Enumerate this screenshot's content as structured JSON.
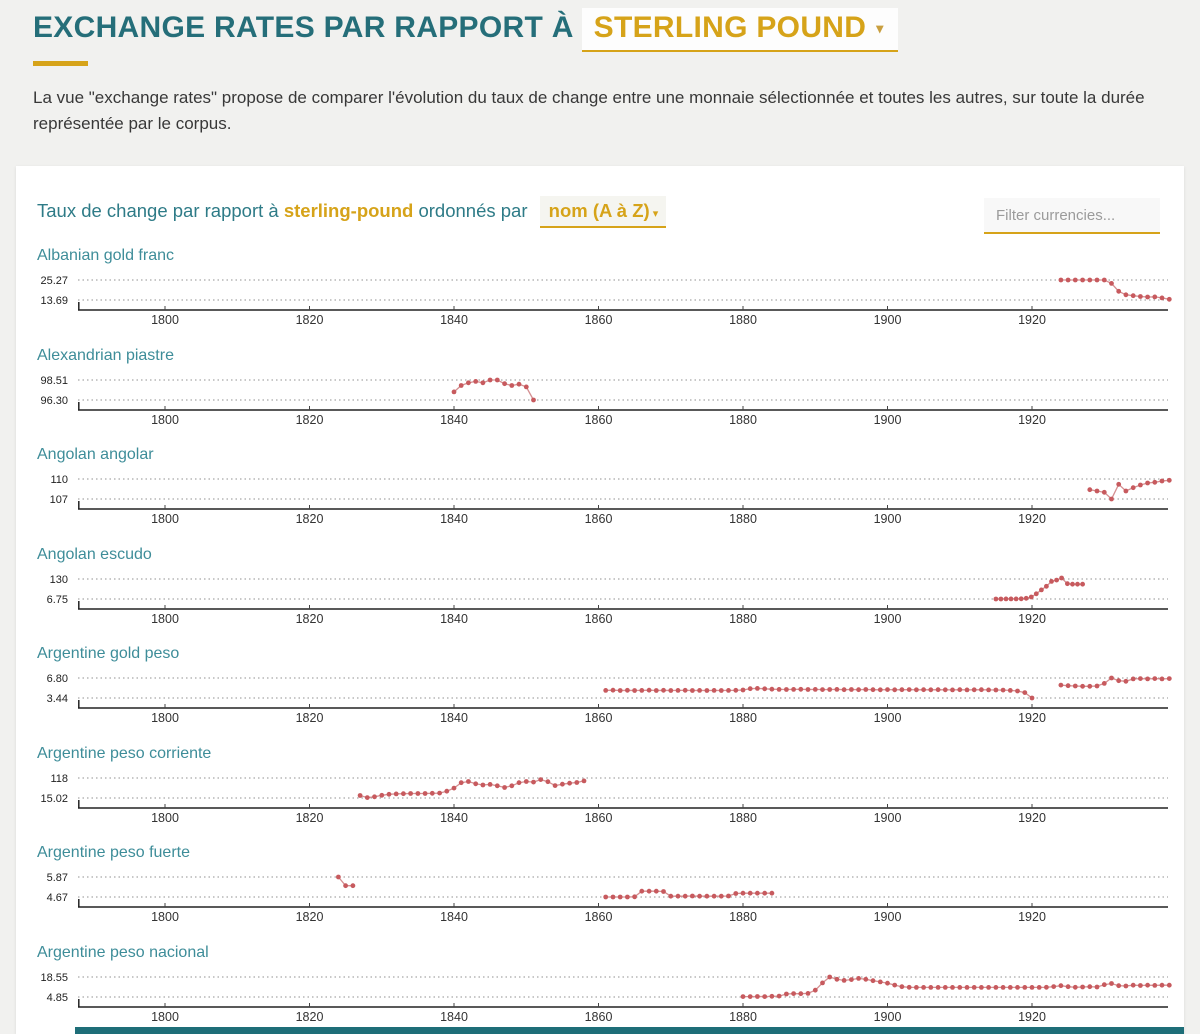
{
  "header": {
    "title": "EXCHANGE RATES PAR RAPPORT À",
    "currency_selector": {
      "value": "STERLING POUND"
    },
    "description": "La vue \"exchange rates\" propose de comparer l'évolution du taux de change entre une monnaie sélectionnée et toutes les autres, sur toute la durée représentée par le corpus."
  },
  "panel": {
    "subtitle_prefix": "Taux de change par rapport à",
    "subtitle_currency": "sterling-pound",
    "subtitle_suffix": "ordonnés par",
    "sort_selector": {
      "value": "nom (A à Z)"
    },
    "filter_input": {
      "placeholder": "Filter currencies...",
      "value": ""
    }
  },
  "colors": {
    "accent_teal": "#256e79",
    "accent_gold": "#d6a319",
    "currency_title_teal": "#3e8d99",
    "series_point": "#c75a5e",
    "series_line": "#d48f91",
    "gridline": "#909090",
    "axis": "#222222",
    "panel_bg": "#ffffff",
    "page_bg": "#f1f1ef",
    "bottom_bar_teal": "#1e6e78"
  },
  "chart_config": {
    "x_ticks": [
      1800,
      1820,
      1840,
      1860,
      1880,
      1900,
      1920
    ],
    "x_domain": [
      1788,
      1939
    ],
    "grid": "dotted-horizontal",
    "legend": "none"
  },
  "chart_data": [
    {
      "type": "line",
      "name": "Albanian gold franc",
      "y_ticks": [
        "25.27",
        "13.69"
      ],
      "segments": [
        [
          [
            1924,
            25.27
          ],
          [
            1925,
            25.27
          ],
          [
            1926,
            25.27
          ],
          [
            1927,
            25.27
          ],
          [
            1928,
            25.27
          ],
          [
            1929,
            25.27
          ],
          [
            1930,
            25.27
          ],
          [
            1931,
            23.3
          ],
          [
            1932,
            18.7
          ],
          [
            1933,
            16.7
          ],
          [
            1934,
            16.2
          ],
          [
            1935,
            15.7
          ],
          [
            1936,
            15.4
          ],
          [
            1937,
            15.5
          ],
          [
            1938,
            14.9
          ],
          [
            1939,
            14.1
          ]
        ]
      ]
    },
    {
      "type": "line",
      "name": "Alexandrian piastre",
      "y_ticks": [
        "98.51",
        "96.30"
      ],
      "segments": [
        [
          [
            1840,
            97.2
          ],
          [
            1841,
            97.9
          ],
          [
            1842,
            98.2
          ],
          [
            1843,
            98.35
          ],
          [
            1844,
            98.2
          ],
          [
            1845,
            98.51
          ],
          [
            1846,
            98.51
          ],
          [
            1847,
            98.1
          ],
          [
            1848,
            97.9
          ],
          [
            1849,
            98.05
          ],
          [
            1850,
            97.75
          ],
          [
            1851,
            96.3
          ]
        ]
      ]
    },
    {
      "type": "line",
      "name": "Angolan angolar",
      "y_ticks": [
        "110",
        "107"
      ],
      "segments": [
        [
          [
            1928,
            108.4
          ],
          [
            1929,
            108.2
          ],
          [
            1930,
            108.0
          ],
          [
            1931,
            107.0
          ],
          [
            1932,
            109.2
          ],
          [
            1933,
            108.2
          ],
          [
            1934,
            108.7
          ],
          [
            1935,
            109.1
          ],
          [
            1936,
            109.4
          ],
          [
            1937,
            109.5
          ],
          [
            1938,
            109.7
          ],
          [
            1939,
            109.8
          ]
        ]
      ]
    },
    {
      "type": "line",
      "name": "Angolan escudo",
      "y_ticks": [
        "130",
        "6.75"
      ],
      "segments": [
        [
          [
            1915,
            7
          ],
          [
            1915.7,
            7
          ],
          [
            1916.4,
            7.1
          ],
          [
            1917.1,
            7.2
          ],
          [
            1917.8,
            7.4
          ],
          [
            1918.5,
            7.8
          ],
          [
            1919.2,
            11
          ],
          [
            1919.9,
            19
          ],
          [
            1920.6,
            39
          ],
          [
            1921.3,
            63
          ],
          [
            1922,
            85
          ],
          [
            1922.7,
            115
          ],
          [
            1923.4,
            123
          ],
          [
            1924.1,
            136
          ],
          [
            1924.9,
            101
          ],
          [
            1925.6,
            98
          ],
          [
            1926.3,
            98
          ],
          [
            1927,
            98
          ]
        ]
      ]
    },
    {
      "type": "line",
      "name": "Argentine gold peso",
      "y_ticks": [
        "6.80",
        "3.44"
      ],
      "segments": [
        [
          [
            1861,
            4.72
          ],
          [
            1862,
            4.75
          ],
          [
            1863,
            4.7
          ],
          [
            1864,
            4.74
          ],
          [
            1865,
            4.7
          ],
          [
            1866,
            4.72
          ],
          [
            1867,
            4.75
          ],
          [
            1868,
            4.7
          ],
          [
            1869,
            4.73
          ],
          [
            1870,
            4.7
          ],
          [
            1871,
            4.72
          ],
          [
            1872,
            4.74
          ],
          [
            1873,
            4.7
          ],
          [
            1874,
            4.72
          ],
          [
            1875,
            4.7
          ],
          [
            1876,
            4.72
          ],
          [
            1877,
            4.7
          ],
          [
            1878,
            4.72
          ],
          [
            1879,
            4.74
          ],
          [
            1880,
            4.78
          ],
          [
            1881,
            5.0
          ],
          [
            1882,
            5.05
          ],
          [
            1883,
            4.98
          ],
          [
            1884,
            4.92
          ],
          [
            1885,
            4.88
          ],
          [
            1886,
            4.86
          ],
          [
            1887,
            4.88
          ],
          [
            1888,
            4.9
          ],
          [
            1889,
            4.86
          ],
          [
            1890,
            4.88
          ],
          [
            1891,
            4.85
          ],
          [
            1892,
            4.86
          ],
          [
            1893,
            4.88
          ],
          [
            1894,
            4.84
          ],
          [
            1895,
            4.86
          ],
          [
            1896,
            4.83
          ],
          [
            1897,
            4.86
          ],
          [
            1898,
            4.84
          ],
          [
            1899,
            4.82
          ],
          [
            1900,
            4.85
          ],
          [
            1901,
            4.82
          ],
          [
            1902,
            4.83
          ],
          [
            1903,
            4.85
          ],
          [
            1904,
            4.82
          ],
          [
            1905,
            4.84
          ],
          [
            1906,
            4.81
          ],
          [
            1907,
            4.84
          ],
          [
            1908,
            4.82
          ],
          [
            1909,
            4.8
          ],
          [
            1910,
            4.83
          ],
          [
            1911,
            4.8
          ],
          [
            1912,
            4.81
          ],
          [
            1913,
            4.83
          ],
          [
            1914,
            4.8
          ],
          [
            1915,
            4.79
          ],
          [
            1916,
            4.76
          ],
          [
            1917,
            4.72
          ],
          [
            1918,
            4.62
          ],
          [
            1919,
            4.35
          ],
          [
            1920,
            3.44
          ]
        ],
        [
          [
            1924,
            5.6
          ],
          [
            1925,
            5.5
          ],
          [
            1926,
            5.45
          ],
          [
            1927,
            5.4
          ],
          [
            1928,
            5.4
          ],
          [
            1929,
            5.45
          ],
          [
            1930,
            5.9
          ],
          [
            1931,
            6.8
          ],
          [
            1932,
            6.35
          ],
          [
            1933,
            6.25
          ],
          [
            1934,
            6.65
          ],
          [
            1935,
            6.7
          ],
          [
            1936,
            6.65
          ],
          [
            1937,
            6.7
          ],
          [
            1938,
            6.65
          ],
          [
            1939,
            6.7
          ]
        ]
      ]
    },
    {
      "type": "line",
      "name": "Argentine peso corriente",
      "y_ticks": [
        "118",
        "15.02"
      ],
      "segments": [
        [
          [
            1827,
            28
          ],
          [
            1828,
            17
          ],
          [
            1829,
            21
          ],
          [
            1830,
            29
          ],
          [
            1831,
            34
          ],
          [
            1832,
            36
          ],
          [
            1833,
            37
          ],
          [
            1834,
            38
          ],
          [
            1835,
            38
          ],
          [
            1836,
            38
          ],
          [
            1837,
            39
          ],
          [
            1838,
            40
          ],
          [
            1839,
            50
          ],
          [
            1840,
            66
          ],
          [
            1841,
            94
          ],
          [
            1842,
            100
          ],
          [
            1843,
            88
          ],
          [
            1844,
            82
          ],
          [
            1845,
            85
          ],
          [
            1846,
            78
          ],
          [
            1847,
            69
          ],
          [
            1848,
            78
          ],
          [
            1849,
            94
          ],
          [
            1850,
            100
          ],
          [
            1851,
            97
          ],
          [
            1852,
            110
          ],
          [
            1853,
            99
          ],
          [
            1854,
            79
          ],
          [
            1855,
            86
          ],
          [
            1856,
            91
          ],
          [
            1857,
            95
          ],
          [
            1858,
            103
          ]
        ]
      ]
    },
    {
      "type": "line",
      "name": "Argentine peso fuerte",
      "y_ticks": [
        "5.87",
        "4.67"
      ],
      "segments": [
        [
          [
            1824,
            5.87
          ],
          [
            1825,
            5.35
          ],
          [
            1826,
            5.35
          ]
        ],
        [
          [
            1861,
            4.67
          ],
          [
            1862,
            4.67
          ],
          [
            1863,
            4.67
          ],
          [
            1864,
            4.67
          ],
          [
            1865,
            4.68
          ],
          [
            1866,
            5.02
          ],
          [
            1867,
            5.02
          ],
          [
            1868,
            5.02
          ],
          [
            1869,
            5.0
          ],
          [
            1870,
            4.72
          ],
          [
            1871,
            4.72
          ],
          [
            1872,
            4.72
          ],
          [
            1873,
            4.73
          ],
          [
            1874,
            4.72
          ],
          [
            1875,
            4.72
          ],
          [
            1876,
            4.72
          ],
          [
            1877,
            4.72
          ],
          [
            1878,
            4.73
          ],
          [
            1879,
            4.88
          ],
          [
            1880,
            4.9
          ],
          [
            1881,
            4.9
          ],
          [
            1882,
            4.9
          ],
          [
            1883,
            4.9
          ],
          [
            1884,
            4.9
          ]
        ]
      ]
    },
    {
      "type": "line",
      "name": "Argentine peso nacional",
      "y_ticks": [
        "18.55",
        "4.85"
      ],
      "segments": [
        [
          [
            1880,
            5.1
          ],
          [
            1881,
            5.1
          ],
          [
            1882,
            5.2
          ],
          [
            1883,
            5.1
          ],
          [
            1884,
            5.3
          ],
          [
            1885,
            5.5
          ],
          [
            1886,
            6.9
          ],
          [
            1887,
            7.2
          ],
          [
            1888,
            7.1
          ],
          [
            1889,
            7.3
          ],
          [
            1890,
            9.5
          ],
          [
            1891,
            14.5
          ],
          [
            1892,
            18.55
          ],
          [
            1893,
            17.0
          ],
          [
            1894,
            16.2
          ],
          [
            1895,
            16.8
          ],
          [
            1896,
            17.6
          ],
          [
            1897,
            17.0
          ],
          [
            1898,
            16.0
          ],
          [
            1899,
            15.2
          ],
          [
            1900,
            14.3
          ],
          [
            1901,
            13.0
          ],
          [
            1902,
            11.9
          ],
          [
            1903,
            11.5
          ],
          [
            1904,
            11.4
          ],
          [
            1905,
            11.4
          ],
          [
            1906,
            11.4
          ],
          [
            1907,
            11.4
          ],
          [
            1908,
            11.4
          ],
          [
            1909,
            11.4
          ],
          [
            1910,
            11.4
          ],
          [
            1911,
            11.4
          ],
          [
            1912,
            11.4
          ],
          [
            1913,
            11.4
          ],
          [
            1914,
            11.4
          ],
          [
            1915,
            11.4
          ],
          [
            1916,
            11.4
          ],
          [
            1917,
            11.4
          ],
          [
            1918,
            11.4
          ],
          [
            1919,
            11.4
          ],
          [
            1920,
            11.4
          ],
          [
            1921,
            11.4
          ],
          [
            1922,
            11.5
          ],
          [
            1923,
            12.0
          ],
          [
            1924,
            12.6
          ],
          [
            1925,
            11.9
          ],
          [
            1926,
            11.5
          ],
          [
            1927,
            11.7
          ],
          [
            1928,
            11.9
          ],
          [
            1929,
            11.7
          ],
          [
            1930,
            13.3
          ],
          [
            1931,
            14.1
          ],
          [
            1932,
            12.6
          ],
          [
            1933,
            12.4
          ],
          [
            1934,
            12.9
          ],
          [
            1935,
            12.7
          ],
          [
            1936,
            12.9
          ],
          [
            1937,
            12.8
          ],
          [
            1938,
            12.9
          ],
          [
            1939,
            12.9
          ]
        ]
      ]
    }
  ]
}
